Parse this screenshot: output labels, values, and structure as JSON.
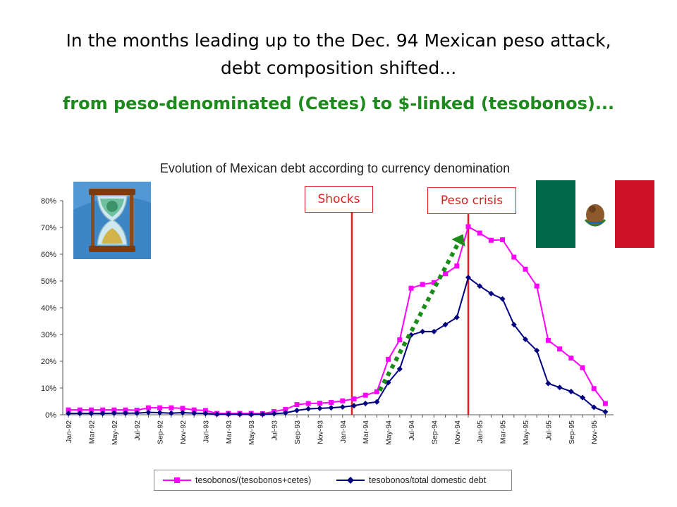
{
  "slide": {
    "title_line1": "In the months leading up to the Dec. 94 Mexican peso attack,",
    "title_line2": "debt composition shifted...",
    "subtitle": "from peso-denominated (Cetes) to $-linked (tesobonos)..."
  },
  "colors": {
    "series1": "#ff00ff",
    "series2": "#000080",
    "event_line": "#e02020",
    "arrow": "#1a8c1a",
    "subtitle": "#1e8a1e"
  },
  "annotations": {
    "shocks": "Shocks",
    "peso_crisis": "Peso crisis"
  },
  "images": {
    "hourglass": "hourglass-icon",
    "flag": "mexico-flag-icon"
  },
  "chart_data": {
    "type": "line",
    "title": "Evolution of Mexican debt according to currency denomination",
    "xlabel": "",
    "ylabel": "",
    "ylim": [
      0,
      80
    ],
    "yticks": [
      "0%",
      "10%",
      "20%",
      "30%",
      "40%",
      "50%",
      "60%",
      "70%",
      "80%"
    ],
    "grid": false,
    "legend_position": "bottom",
    "x": [
      "Jan-92",
      "Feb-92",
      "Mar-92",
      "Apr-92",
      "May-92",
      "Jun-92",
      "Jul-92",
      "Aug-92",
      "Sep-92",
      "Oct-92",
      "Nov-92",
      "Dec-92",
      "Jan-93",
      "Feb-93",
      "Mar-93",
      "Apr-93",
      "May-93",
      "Jun-93",
      "Jul-93",
      "Aug-93",
      "Sep-93",
      "Oct-93",
      "Nov-93",
      "Dec-93",
      "Jan-94",
      "Feb-94",
      "Mar-94",
      "Apr-94",
      "May-94",
      "Jun-94",
      "Jul-94",
      "Aug-94",
      "Sep-94",
      "Oct-94",
      "Nov-94",
      "Dec-94",
      "Jan-95",
      "Feb-95",
      "Mar-95",
      "Apr-95",
      "May-95",
      "Jun-95",
      "Jul-95",
      "Aug-95",
      "Sep-95",
      "Oct-95",
      "Nov-95",
      "Dec-95"
    ],
    "xtick_labels": [
      "Jan-92",
      "Mar-92",
      "May-92",
      "Jul-92",
      "Sep-92",
      "Nov-92",
      "Jan-93",
      "Mar-93",
      "May-93",
      "Jul-93",
      "Sep-93",
      "Nov-93",
      "Jan-94",
      "Mar-94",
      "May-94",
      "Jul-94",
      "Sep-94",
      "Nov-94",
      "Jan-95",
      "Mar-95",
      "May-95",
      "Jul-95",
      "Sep-95",
      "Nov-95"
    ],
    "series": [
      {
        "name": "tesobonos/(tesobonos+cetes)",
        "marker": "square",
        "values": [
          1.8,
          1.8,
          1.8,
          1.8,
          1.8,
          1.8,
          1.7,
          2.6,
          2.6,
          2.6,
          2.4,
          1.8,
          1.6,
          0.5,
          0.5,
          0.5,
          0.5,
          0.4,
          1.2,
          2.0,
          3.8,
          4.2,
          4.3,
          4.6,
          5.2,
          5.9,
          7.3,
          8.6,
          20.7,
          28.0,
          47.3,
          48.7,
          49.4,
          52.7,
          55.6,
          70.3,
          67.9,
          65.2,
          65.4,
          58.9,
          54.4,
          48.1,
          27.8,
          24.6,
          21.2,
          17.6,
          9.8,
          4.2
        ]
      },
      {
        "name": "tesobonos/total domestic debt",
        "marker": "diamond",
        "values": [
          0.5,
          0.5,
          0.5,
          0.5,
          0.6,
          0.6,
          0.6,
          0.9,
          0.8,
          0.6,
          0.8,
          0.6,
          0.5,
          0.2,
          0.2,
          0.2,
          0.1,
          0.2,
          0.4,
          0.7,
          1.6,
          2.2,
          2.4,
          2.6,
          2.9,
          3.4,
          4.2,
          4.8,
          12.0,
          17.1,
          29.8,
          31.1,
          31.1,
          33.7,
          36.4,
          51.3,
          48.1,
          45.3,
          43.3,
          33.7,
          28.2,
          24.0,
          11.7,
          10.2,
          8.7,
          6.4,
          2.8,
          1.1
        ]
      }
    ]
  },
  "legend": {
    "series1_label": "tesobonos/(tesobonos+cetes)",
    "series2_label": "tesobonos/total domestic debt"
  }
}
